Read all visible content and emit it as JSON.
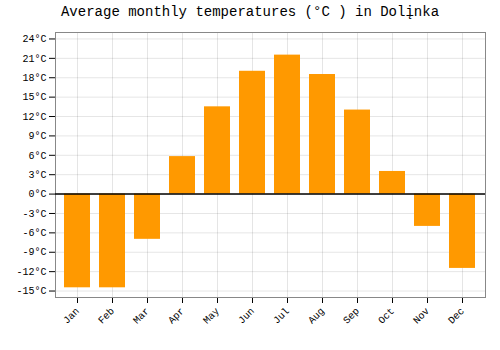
{
  "chart_data": {
    "type": "bar",
    "title": "Average monthly temperatures (°C ) in Dolįnka",
    "categories": [
      "Jan",
      "Feb",
      "Mar",
      "Apr",
      "May",
      "Jun",
      "Jul",
      "Aug",
      "Sep",
      "Oct",
      "Nov",
      "Dec"
    ],
    "values": [
      -14.5,
      -14.5,
      -7.0,
      5.8,
      13.5,
      19.0,
      21.5,
      18.5,
      13.0,
      3.5,
      -5.0,
      -11.5
    ],
    "color": "#FF9900",
    "ylim": [
      -16,
      25
    ],
    "yticks": [
      {
        "value": -15,
        "label": "-15°C"
      },
      {
        "value": -12,
        "label": "-12°C"
      },
      {
        "value": -9,
        "label": "-9°C"
      },
      {
        "value": -6,
        "label": "-6°C"
      },
      {
        "value": -3,
        "label": "-3°C"
      },
      {
        "value": 0,
        "label": "0°C"
      },
      {
        "value": 3,
        "label": "3°C"
      },
      {
        "value": 6,
        "label": "6°C"
      },
      {
        "value": 9,
        "label": "9°C"
      },
      {
        "value": 12,
        "label": "12°C"
      },
      {
        "value": 15,
        "label": "15°C"
      },
      {
        "value": 18,
        "label": "18°C"
      },
      {
        "value": 21,
        "label": "21°C"
      },
      {
        "value": 24,
        "label": "24°C"
      }
    ],
    "grid": true
  }
}
